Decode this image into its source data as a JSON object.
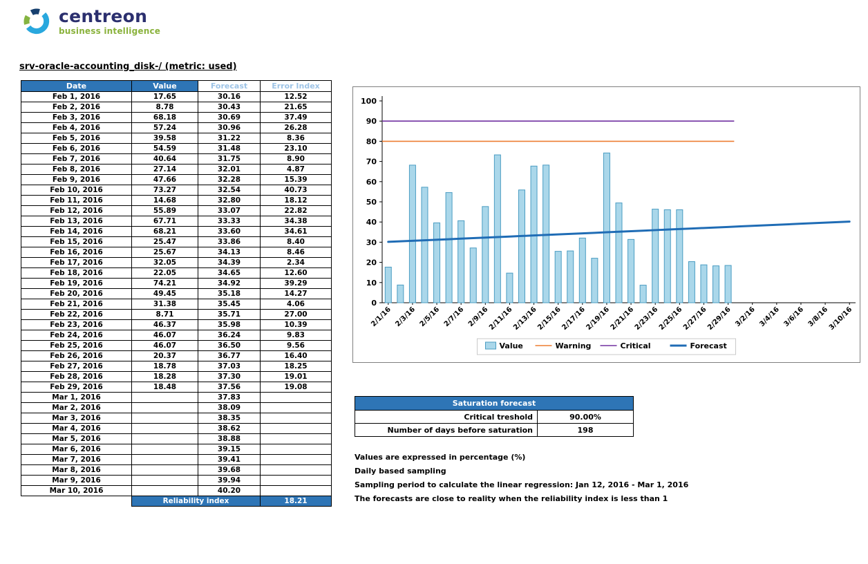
{
  "brand": {
    "name": "centreon",
    "tagline": "business intelligence"
  },
  "title": "srv-oracle-accounting_disk-/ (metric: used)",
  "table": {
    "headers": [
      "Date",
      "Value",
      "Forecast",
      "Error Index"
    ],
    "rows": [
      [
        "Feb 1, 2016",
        "17.65",
        "30.16",
        "12.52"
      ],
      [
        "Feb 2, 2016",
        "8.78",
        "30.43",
        "21.65"
      ],
      [
        "Feb 3, 2016",
        "68.18",
        "30.69",
        "37.49"
      ],
      [
        "Feb 4, 2016",
        "57.24",
        "30.96",
        "26.28"
      ],
      [
        "Feb 5, 2016",
        "39.58",
        "31.22",
        "8.36"
      ],
      [
        "Feb 6, 2016",
        "54.59",
        "31.48",
        "23.10"
      ],
      [
        "Feb 7, 2016",
        "40.64",
        "31.75",
        "8.90"
      ],
      [
        "Feb 8, 2016",
        "27.14",
        "32.01",
        "4.87"
      ],
      [
        "Feb 9, 2016",
        "47.66",
        "32.28",
        "15.39"
      ],
      [
        "Feb 10, 2016",
        "73.27",
        "32.54",
        "40.73"
      ],
      [
        "Feb 11, 2016",
        "14.68",
        "32.80",
        "18.12"
      ],
      [
        "Feb 12, 2016",
        "55.89",
        "33.07",
        "22.82"
      ],
      [
        "Feb 13, 2016",
        "67.71",
        "33.33",
        "34.38"
      ],
      [
        "Feb 14, 2016",
        "68.21",
        "33.60",
        "34.61"
      ],
      [
        "Feb 15, 2016",
        "25.47",
        "33.86",
        "8.40"
      ],
      [
        "Feb 16, 2016",
        "25.67",
        "34.13",
        "8.46"
      ],
      [
        "Feb 17, 2016",
        "32.05",
        "34.39",
        "2.34"
      ],
      [
        "Feb 18, 2016",
        "22.05",
        "34.65",
        "12.60"
      ],
      [
        "Feb 19, 2016",
        "74.21",
        "34.92",
        "39.29"
      ],
      [
        "Feb 20, 2016",
        "49.45",
        "35.18",
        "14.27"
      ],
      [
        "Feb 21, 2016",
        "31.38",
        "35.45",
        "4.06"
      ],
      [
        "Feb 22, 2016",
        "8.71",
        "35.71",
        "27.00"
      ],
      [
        "Feb 23, 2016",
        "46.37",
        "35.98",
        "10.39"
      ],
      [
        "Feb 24, 2016",
        "46.07",
        "36.24",
        "9.83"
      ],
      [
        "Feb 25, 2016",
        "46.07",
        "36.50",
        "9.56"
      ],
      [
        "Feb 26, 2016",
        "20.37",
        "36.77",
        "16.40"
      ],
      [
        "Feb 27, 2016",
        "18.78",
        "37.03",
        "18.25"
      ],
      [
        "Feb 28, 2016",
        "18.28",
        "37.30",
        "19.01"
      ],
      [
        "Feb 29, 2016",
        "18.48",
        "37.56",
        "19.08"
      ],
      [
        "Mar 1, 2016",
        "",
        "37.83",
        ""
      ],
      [
        "Mar 2, 2016",
        "",
        "38.09",
        ""
      ],
      [
        "Mar 3, 2016",
        "",
        "38.35",
        ""
      ],
      [
        "Mar 4, 2016",
        "",
        "38.62",
        ""
      ],
      [
        "Mar 5, 2016",
        "",
        "38.88",
        ""
      ],
      [
        "Mar 6, 2016",
        "",
        "39.15",
        ""
      ],
      [
        "Mar 7, 2016",
        "",
        "39.41",
        ""
      ],
      [
        "Mar 8, 2016",
        "",
        "39.68",
        ""
      ],
      [
        "Mar 9, 2016",
        "",
        "39.94",
        ""
      ],
      [
        "Mar 10, 2016",
        "",
        "40.20",
        ""
      ]
    ],
    "footer": {
      "label": "Reliability index",
      "value": "18.21"
    }
  },
  "saturation": {
    "title": "Saturation forecast",
    "rows": [
      {
        "label": "Critical treshold",
        "value": "90.00%"
      },
      {
        "label": "Number of days before saturation",
        "value": "198"
      }
    ]
  },
  "notes": [
    "Values are expressed in percentage (%)",
    "Daily based sampling",
    "Sampling period to calculate the linear regression: Jan 12, 2016 - Mar 1, 2016",
    "The forecasts are close to reality when the reliability index is less than 1"
  ],
  "colors": {
    "header_blue": "#2e75b6",
    "header_light_blue": "#9dc3e6",
    "logo_light_blue": "#29a8de",
    "logo_dark_blue": "#17406f",
    "logo_green": "#85b441"
  },
  "chart_data": {
    "type": "bar",
    "title": "",
    "xlabel": "",
    "ylabel": "",
    "ylim": [
      0,
      100
    ],
    "ytick_step": 10,
    "xtick_every": 2,
    "legend_position": "bottom",
    "categories": [
      "2/1/16",
      "2/2/16",
      "2/3/16",
      "2/4/16",
      "2/5/16",
      "2/6/16",
      "2/7/16",
      "2/8/16",
      "2/9/16",
      "2/10/16",
      "2/11/16",
      "2/12/16",
      "2/13/16",
      "2/14/16",
      "2/15/16",
      "2/16/16",
      "2/17/16",
      "2/18/16",
      "2/19/16",
      "2/20/16",
      "2/21/16",
      "2/22/16",
      "2/23/16",
      "2/24/16",
      "2/25/16",
      "2/26/16",
      "2/27/16",
      "2/28/16",
      "2/29/16",
      "3/1/16",
      "3/2/16",
      "3/3/16",
      "3/4/16",
      "3/5/16",
      "3/6/16",
      "3/7/16",
      "3/8/16",
      "3/9/16",
      "3/10/16"
    ],
    "series": [
      {
        "name": "Value",
        "type": "bar",
        "color": "#aad7ea",
        "border": "#4a9cc2",
        "values": [
          17.65,
          8.78,
          68.18,
          57.24,
          39.58,
          54.59,
          40.64,
          27.14,
          47.66,
          73.27,
          14.68,
          55.89,
          67.71,
          68.21,
          25.47,
          25.67,
          32.05,
          22.05,
          74.21,
          49.45,
          31.38,
          8.71,
          46.37,
          46.07,
          46.07,
          20.37,
          18.78,
          18.28,
          18.48
        ]
      },
      {
        "name": "Warning",
        "type": "threshold",
        "color": "#ed7d31",
        "y": 80,
        "x_end": "2/29/16"
      },
      {
        "name": "Critical",
        "type": "threshold",
        "color": "#7030a0",
        "y": 90,
        "x_end": "2/29/16"
      },
      {
        "name": "Forecast",
        "type": "line",
        "color": "#1f6cb5",
        "values": [
          30.16,
          30.43,
          30.69,
          30.96,
          31.22,
          31.48,
          31.75,
          32.01,
          32.28,
          32.54,
          32.8,
          33.07,
          33.33,
          33.6,
          33.86,
          34.13,
          34.39,
          34.65,
          34.92,
          35.18,
          35.45,
          35.71,
          35.98,
          36.24,
          36.5,
          36.77,
          37.03,
          37.3,
          37.56,
          37.83,
          38.09,
          38.35,
          38.62,
          38.88,
          39.15,
          39.41,
          39.68,
          39.94,
          40.2
        ]
      }
    ]
  }
}
